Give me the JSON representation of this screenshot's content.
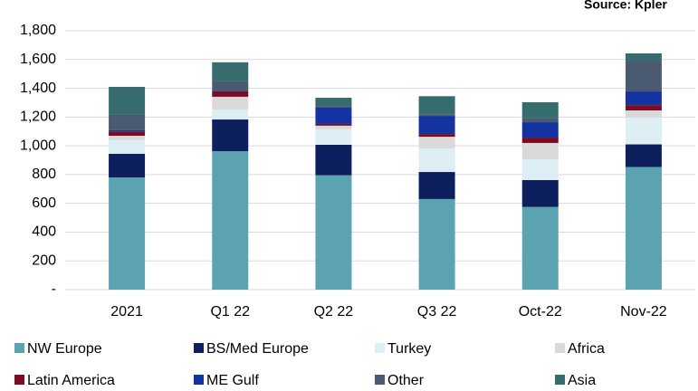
{
  "chart_data": {
    "type": "bar",
    "stacked": true,
    "subtitle": "Source: Kpler",
    "categories": [
      "2021",
      "Q1 22",
      "Q2 22",
      "Q3 22",
      "Oct-22",
      "Nov-22"
    ],
    "series": [
      {
        "name": "NW Europe",
        "color": "#5ba3b0",
        "values": [
          780,
          963,
          795,
          630,
          575,
          853
        ]
      },
      {
        "name": "BS/Med Europe",
        "color": "#0d1f5c",
        "values": [
          165,
          220,
          212,
          188,
          187,
          157
        ]
      },
      {
        "name": "Turkey",
        "color": "#ddeef4",
        "values": [
          95,
          70,
          108,
          164,
          143,
          186
        ]
      },
      {
        "name": "Africa",
        "color": "#d9d9d9",
        "values": [
          30,
          88,
          25,
          81,
          115,
          50
        ]
      },
      {
        "name": "Latin America",
        "color": "#7b0d23",
        "values": [
          30,
          38,
          12,
          19,
          37,
          37
        ]
      },
      {
        "name": "ME Gulf",
        "color": "#1334a0",
        "values": [
          10,
          5,
          113,
          126,
          107,
          95
        ]
      },
      {
        "name": "Other",
        "color": "#4a5a70",
        "values": [
          105,
          64,
          12,
          12,
          26,
          214
        ]
      },
      {
        "name": "Asia",
        "color": "#366c6e",
        "values": [
          195,
          133,
          57,
          125,
          113,
          51
        ]
      }
    ],
    "ylim": [
      0,
      1800
    ],
    "yticks": [
      {
        "value": 0,
        "label": "-"
      },
      200,
      400,
      600,
      800,
      {
        "value": 1000,
        "label": "1,000"
      },
      {
        "value": 1200,
        "label": "1,200"
      },
      {
        "value": 1400,
        "label": "1,400"
      },
      {
        "value": 1600,
        "label": "1,600"
      },
      {
        "value": 1800,
        "label": "1,800"
      }
    ],
    "grid": true
  }
}
